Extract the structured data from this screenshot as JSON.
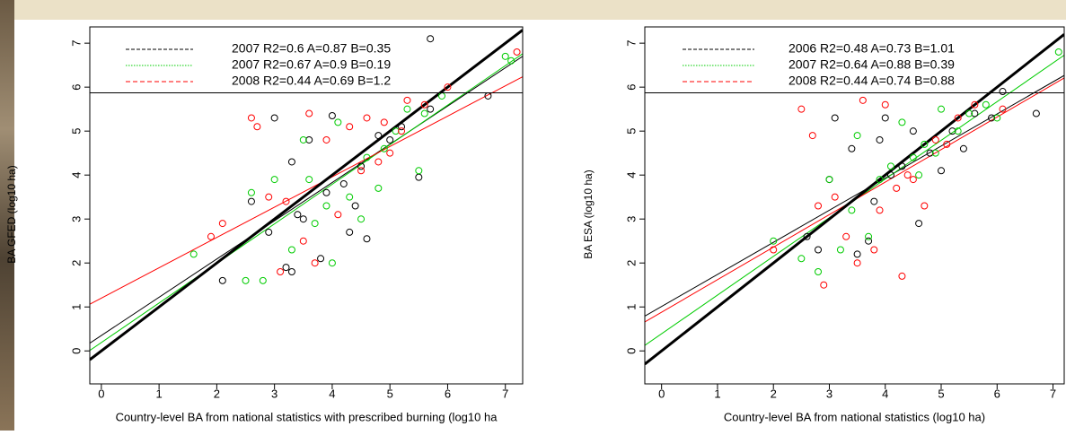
{
  "chart_data": [
    {
      "type": "scatter",
      "xlabel": "Country-level BA from national statistics with prescribed burning (log10 ha",
      "ylabel": "BA GFED (log10 ha)",
      "xlim": [
        -0.2,
        7.3
      ],
      "ylim": [
        -0.75,
        7.37
      ],
      "xticks": [
        0,
        1,
        2,
        3,
        4,
        5,
        6,
        7
      ],
      "yticks": [
        0,
        1,
        2,
        3,
        4,
        5,
        6,
        7
      ],
      "hline": 5.87,
      "identity_line": true,
      "series": [
        {
          "name": "2007 R2=0.6 A=0.87 B=0.35",
          "color": "#000000",
          "fit": {
            "slope": 0.87,
            "intercept": 0.35
          },
          "x": [
            2.1,
            2.6,
            2.9,
            3.0,
            3.2,
            3.3,
            3.4,
            3.5,
            3.6,
            3.8,
            3.9,
            4.0,
            4.2,
            4.3,
            4.5,
            4.6,
            4.8,
            5.0,
            5.2,
            5.5,
            5.7,
            5.7,
            6.7,
            4.4,
            3.3
          ],
          "values": [
            1.6,
            3.4,
            2.7,
            5.3,
            1.9,
            1.8,
            3.1,
            3.0,
            4.8,
            2.1,
            3.6,
            5.35,
            3.8,
            2.7,
            4.2,
            2.55,
            4.9,
            4.8,
            5.1,
            3.95,
            7.1,
            5.5,
            5.8,
            3.3,
            4.3
          ]
        },
        {
          "name": "2007 R2=0.67 A=0.9 B=0.19",
          "color": "#00cc00",
          "fit": {
            "slope": 0.9,
            "intercept": 0.19
          },
          "x": [
            1.6,
            2.5,
            2.6,
            2.8,
            3.0,
            3.3,
            3.5,
            3.7,
            3.9,
            4.0,
            4.1,
            4.3,
            4.5,
            4.6,
            4.8,
            5.1,
            5.3,
            5.5,
            5.6,
            5.9,
            7.0,
            7.1,
            4.9,
            3.6
          ],
          "values": [
            2.2,
            1.6,
            3.6,
            1.6,
            3.9,
            2.3,
            4.8,
            2.9,
            3.3,
            2.0,
            5.2,
            3.5,
            3.0,
            4.4,
            3.7,
            5.0,
            5.5,
            4.1,
            5.4,
            5.8,
            6.7,
            6.6,
            4.6,
            3.9
          ]
        },
        {
          "name": "2008 R2=0.44 A=0.69 B=1.2",
          "color": "#ff0000",
          "fit": {
            "slope": 0.69,
            "intercept": 1.2
          },
          "x": [
            1.9,
            2.1,
            2.6,
            2.7,
            2.9,
            3.1,
            3.2,
            3.5,
            3.6,
            3.7,
            3.9,
            4.1,
            4.3,
            4.5,
            4.6,
            4.8,
            5.0,
            5.2,
            5.3,
            5.6,
            6.0,
            7.2,
            4.9
          ],
          "values": [
            2.6,
            2.9,
            5.3,
            5.1,
            3.5,
            1.8,
            3.4,
            2.5,
            5.4,
            2.0,
            4.8,
            3.1,
            5.1,
            4.1,
            5.3,
            4.3,
            4.5,
            5.0,
            5.7,
            5.6,
            6.0,
            6.8,
            5.2
          ]
        }
      ]
    },
    {
      "type": "scatter",
      "xlabel": "Country-level BA from national statistics (log10 ha)",
      "ylabel": "BA ESA (log10 ha)",
      "xlim": [
        -0.3,
        7.2
      ],
      "ylim": [
        -0.75,
        7.37
      ],
      "xticks": [
        0,
        1,
        2,
        3,
        4,
        5,
        6,
        7
      ],
      "yticks": [
        0,
        1,
        2,
        3,
        4,
        5,
        6,
        7
      ],
      "hline": 5.87,
      "identity_line": true,
      "series": [
        {
          "name": "2006 R2=0.48 A=0.73 B=1.01",
          "color": "#000000",
          "fit": {
            "slope": 0.73,
            "intercept": 1.01
          },
          "x": [
            2.6,
            2.8,
            3.0,
            3.1,
            3.4,
            3.5,
            3.7,
            3.8,
            4.0,
            4.1,
            4.3,
            4.5,
            4.6,
            4.8,
            5.0,
            5.2,
            5.4,
            5.6,
            5.9,
            6.1,
            6.7,
            3.9
          ],
          "values": [
            2.6,
            2.3,
            3.9,
            5.3,
            4.6,
            2.2,
            2.5,
            3.4,
            5.3,
            4.0,
            4.2,
            5.0,
            2.9,
            4.5,
            4.1,
            5.0,
            4.6,
            5.4,
            5.3,
            5.9,
            5.4,
            4.8
          ]
        },
        {
          "name": "2007 R2=0.64 A=0.88 B=0.39",
          "color": "#00cc00",
          "fit": {
            "slope": 0.88,
            "intercept": 0.39
          },
          "x": [
            2.0,
            2.5,
            2.8,
            3.0,
            3.2,
            3.4,
            3.7,
            3.9,
            4.1,
            4.3,
            4.5,
            4.7,
            4.9,
            5.0,
            5.3,
            5.5,
            5.8,
            6.0,
            7.1,
            4.6,
            3.5
          ],
          "values": [
            2.5,
            2.1,
            1.8,
            3.9,
            2.3,
            3.2,
            2.6,
            3.9,
            4.2,
            5.2,
            4.4,
            4.7,
            4.5,
            5.5,
            5.0,
            5.4,
            5.6,
            5.3,
            6.8,
            4.0,
            4.9
          ]
        },
        {
          "name": "2008 R2=0.44 A=0.74 B=0.88",
          "color": "#ff0000",
          "fit": {
            "slope": 0.74,
            "intercept": 0.88
          },
          "x": [
            2.0,
            2.5,
            2.7,
            2.9,
            3.1,
            3.3,
            3.5,
            3.6,
            3.8,
            3.9,
            4.0,
            4.2,
            4.3,
            4.5,
            4.7,
            4.9,
            5.1,
            5.3,
            5.6,
            6.1,
            4.4,
            2.8
          ],
          "values": [
            2.3,
            5.5,
            4.9,
            1.5,
            3.5,
            2.6,
            2.0,
            5.7,
            2.3,
            3.2,
            5.6,
            3.7,
            1.7,
            3.9,
            3.3,
            4.8,
            4.7,
            5.3,
            5.6,
            5.5,
            4.0,
            3.3
          ]
        }
      ]
    }
  ]
}
